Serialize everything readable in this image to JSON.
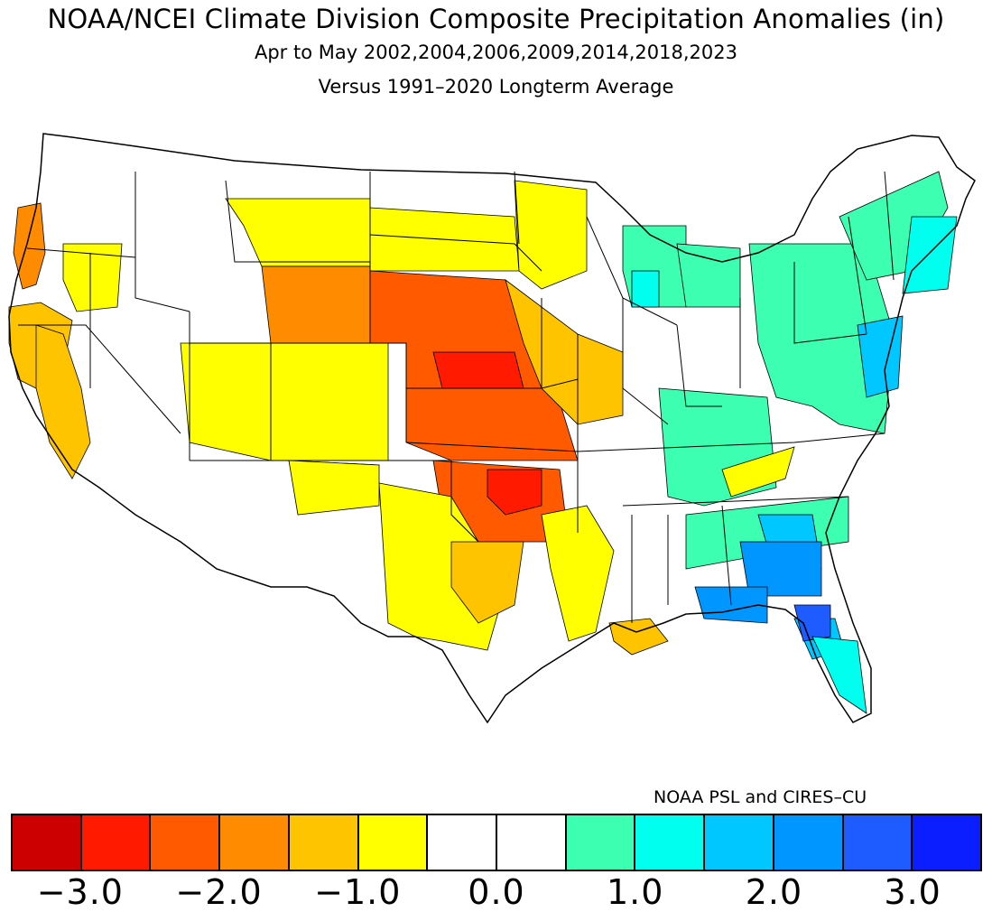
{
  "header": {
    "title": "NOAA/NCEI Climate Division Composite Precipitation Anomalies (in)",
    "subtitle": "Apr to May  2002,2004,2006,2009,2014,2018,2023",
    "baseline": "Versus 1991–2020 Longterm Average"
  },
  "credit": "NOAA PSL and CIRES–CU",
  "legend": {
    "colors": [
      "#cc0000",
      "#ff1a00",
      "#ff5a00",
      "#ff8c00",
      "#ffc400",
      "#ffff00",
      "#ffffff",
      "#ffffff",
      "#3dffb1",
      "#00ffef",
      "#00c7ff",
      "#0096ff",
      "#1e5cff",
      "#0a1eff"
    ],
    "tick_labels": [
      "−3.0",
      "−2.0",
      "−1.0",
      "0.0",
      "1.0",
      "2.0",
      "3.0"
    ],
    "tick_values": [
      -3.0,
      -2.0,
      -1.0,
      0.0,
      1.0,
      2.0,
      3.0
    ]
  },
  "map_regions": [
    {
      "name": "ca-coast-north",
      "color": "#ff8c00"
    },
    {
      "name": "ca-north-interior",
      "color": "#ffc400"
    },
    {
      "name": "ca-central",
      "color": "#ffc400"
    },
    {
      "name": "oregon-east",
      "color": "#ffff00"
    },
    {
      "name": "montana-east",
      "color": "#ffff00"
    },
    {
      "name": "nd-sd",
      "color": "#ffff00"
    },
    {
      "name": "minnesota",
      "color": "#ffff00"
    },
    {
      "name": "wyoming",
      "color": "#ff8c00"
    },
    {
      "name": "utah-colorado",
      "color": "#ffff00"
    },
    {
      "name": "utah-south",
      "color": "#ffff00"
    },
    {
      "name": "nebraska-kansas",
      "color": "#ff5a00"
    },
    {
      "name": "nebraska-core",
      "color": "#ff1a00"
    },
    {
      "name": "iowa-missouri",
      "color": "#ffc400"
    },
    {
      "name": "oklahoma",
      "color": "#ff5a00"
    },
    {
      "name": "oklahoma-core",
      "color": "#ff1a00"
    },
    {
      "name": "texas-west",
      "color": "#ffff00"
    },
    {
      "name": "texas-central",
      "color": "#ffc400"
    },
    {
      "name": "arkansas-louisiana",
      "color": "#ffff00"
    },
    {
      "name": "louisiana-delta",
      "color": "#ffc400"
    },
    {
      "name": "new-mexico-north",
      "color": "#ffff00"
    },
    {
      "name": "wisconsin",
      "color": "#3dffb1"
    },
    {
      "name": "wisconsin-east",
      "color": "#00ffef"
    },
    {
      "name": "michigan",
      "color": "#3dffb1"
    },
    {
      "name": "ohio-valley",
      "color": "#3dffb1"
    },
    {
      "name": "appalachians-midatlantic",
      "color": "#3dffb1"
    },
    {
      "name": "new-england",
      "color": "#3dffb1"
    },
    {
      "name": "new-england-coast",
      "color": "#00ffef"
    },
    {
      "name": "mid-atlantic-coast",
      "color": "#00c7ff"
    },
    {
      "name": "tennessee-strip",
      "color": "#ffff00"
    },
    {
      "name": "carolinas-alabama",
      "color": "#3dffb1"
    },
    {
      "name": "georgia",
      "color": "#00c7ff"
    },
    {
      "name": "georgia-core",
      "color": "#0096ff"
    },
    {
      "name": "florida-panhandle",
      "color": "#0096ff"
    },
    {
      "name": "florida-north",
      "color": "#00c7ff"
    },
    {
      "name": "florida-central",
      "color": "#1e5cff"
    },
    {
      "name": "florida-south",
      "color": "#00ffef"
    }
  ]
}
